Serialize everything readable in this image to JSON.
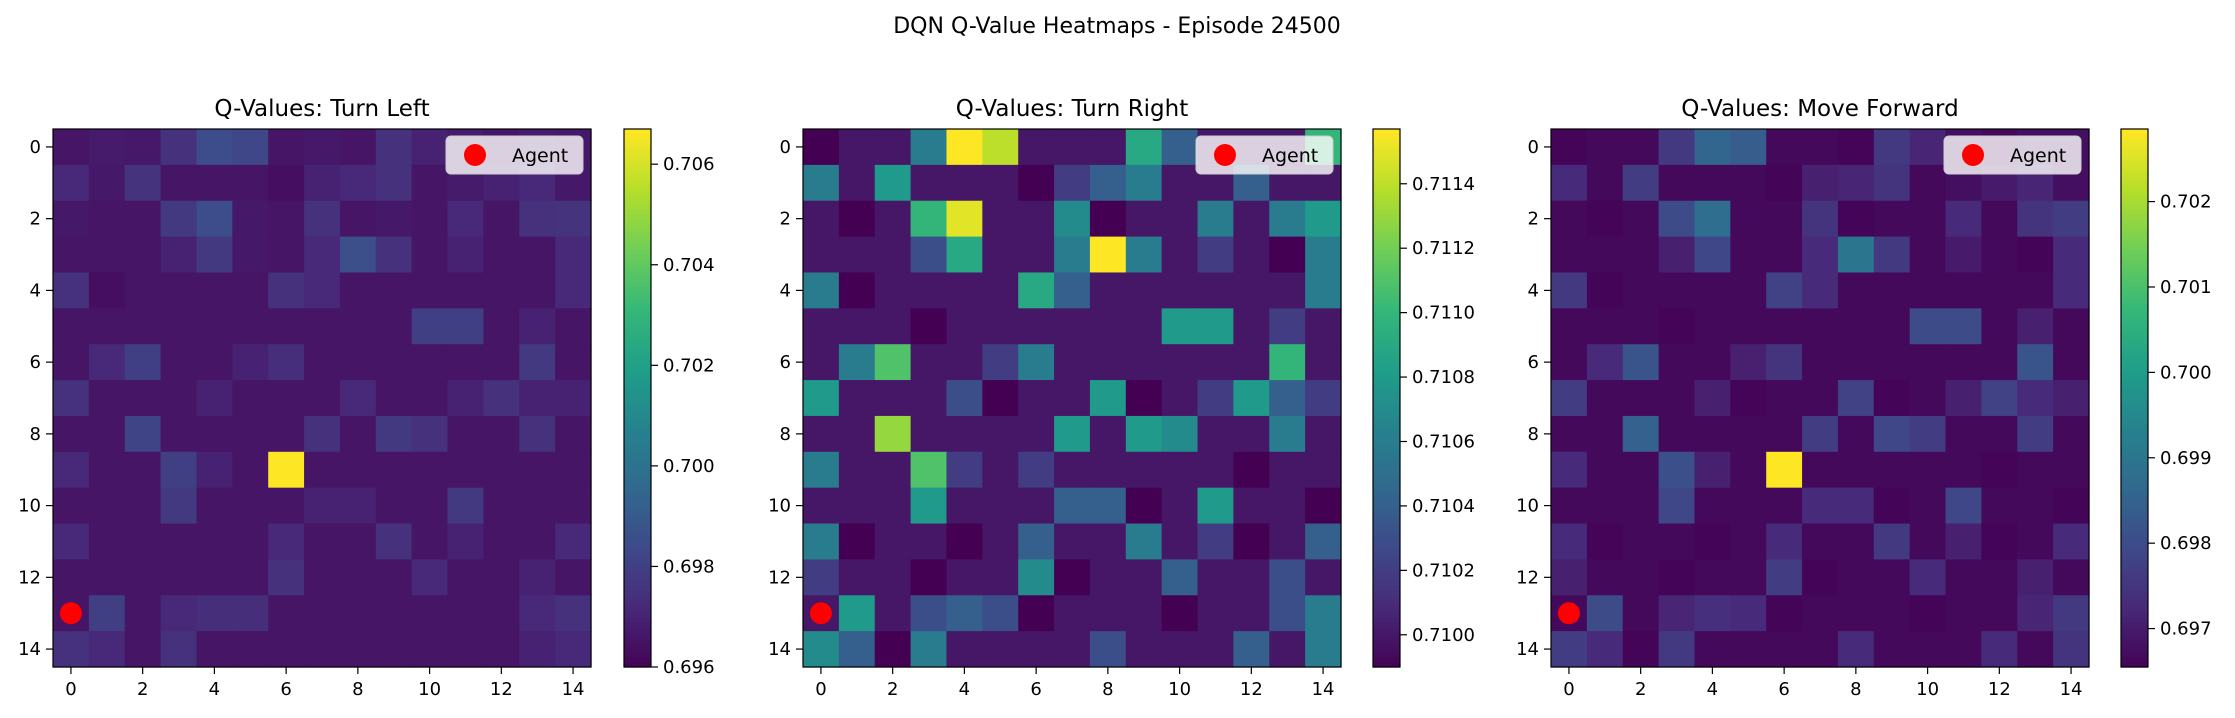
{
  "figure": {
    "title": "DQN Q-Value Heatmaps - Episode 24500"
  },
  "colormap": {
    "name": "viridis",
    "stops": [
      "#440154",
      "#482878",
      "#3e4989",
      "#31688e",
      "#26828e",
      "#1f9e89",
      "#35b779",
      "#6ece58",
      "#b5de2b",
      "#fde725"
    ]
  },
  "chart_data": [
    {
      "type": "heatmap",
      "title": "Q-Values: Turn Left",
      "grid_size": 15,
      "x_ticks": [
        0,
        2,
        4,
        6,
        8,
        10,
        12,
        14
      ],
      "y_ticks": [
        0,
        2,
        4,
        6,
        8,
        10,
        12,
        14
      ],
      "colorbar": {
        "vmin": 0.696,
        "vmax": 0.7067,
        "ticks": [
          0.696,
          0.698,
          0.7,
          0.702,
          0.704,
          0.706
        ],
        "tick_labels": [
          "0.696",
          "0.698",
          "0.700",
          "0.702",
          "0.704",
          "0.706"
        ]
      },
      "legend": {
        "label": "Agent",
        "placement": "top-right",
        "marker_color": "#ff0000"
      },
      "agent": {
        "x": 0,
        "y": 13
      },
      "values": [
        [
          0.6966,
          0.6968,
          0.6967,
          0.6975,
          0.6985,
          0.6983,
          0.6966,
          0.6967,
          0.6966,
          0.6975,
          0.697,
          0.6968,
          0.6966,
          0.6968,
          0.6967
        ],
        [
          0.6972,
          0.6967,
          0.6976,
          0.6966,
          0.6966,
          0.6966,
          0.6964,
          0.697,
          0.6972,
          0.6975,
          0.6966,
          0.6968,
          0.697,
          0.6972,
          0.6967
        ],
        [
          0.6967,
          0.6966,
          0.6966,
          0.6978,
          0.6985,
          0.6967,
          0.6966,
          0.6975,
          0.6966,
          0.6967,
          0.6966,
          0.6972,
          0.6966,
          0.6975,
          0.6976
        ],
        [
          0.6966,
          0.6966,
          0.6966,
          0.697,
          0.6978,
          0.6967,
          0.6966,
          0.6972,
          0.6986,
          0.6975,
          0.6966,
          0.697,
          0.6966,
          0.6966,
          0.6972
        ],
        [
          0.6975,
          0.6964,
          0.6966,
          0.6966,
          0.6966,
          0.6966,
          0.6975,
          0.6972,
          0.6966,
          0.6966,
          0.6966,
          0.6966,
          0.6966,
          0.6966,
          0.6972
        ],
        [
          0.6966,
          0.6966,
          0.6966,
          0.6966,
          0.6966,
          0.6966,
          0.6966,
          0.6966,
          0.6966,
          0.6966,
          0.698,
          0.698,
          0.6966,
          0.697,
          0.6966
        ],
        [
          0.6966,
          0.6972,
          0.698,
          0.6966,
          0.6966,
          0.697,
          0.6974,
          0.6966,
          0.6966,
          0.6966,
          0.6966,
          0.6966,
          0.6966,
          0.6978,
          0.6966
        ],
        [
          0.6975,
          0.6966,
          0.6966,
          0.6966,
          0.697,
          0.6966,
          0.6966,
          0.6966,
          0.6972,
          0.6966,
          0.6966,
          0.697,
          0.6975,
          0.697,
          0.697
        ],
        [
          0.6966,
          0.6966,
          0.6982,
          0.6966,
          0.6966,
          0.6966,
          0.6966,
          0.6975,
          0.6966,
          0.6978,
          0.6975,
          0.6966,
          0.6966,
          0.6975,
          0.6966
        ],
        [
          0.6972,
          0.6966,
          0.6966,
          0.698,
          0.697,
          0.6966,
          0.7067,
          0.6966,
          0.6966,
          0.6966,
          0.6966,
          0.6966,
          0.6966,
          0.6966,
          0.6966
        ],
        [
          0.6966,
          0.6966,
          0.6966,
          0.6978,
          0.6966,
          0.6966,
          0.6966,
          0.697,
          0.697,
          0.6966,
          0.6966,
          0.6978,
          0.6966,
          0.6966,
          0.6966
        ],
        [
          0.6972,
          0.6966,
          0.6966,
          0.6966,
          0.6966,
          0.6966,
          0.6972,
          0.6966,
          0.6966,
          0.6975,
          0.6966,
          0.697,
          0.6966,
          0.6966,
          0.6972
        ],
        [
          0.6966,
          0.6966,
          0.6966,
          0.6966,
          0.6966,
          0.6966,
          0.6975,
          0.6966,
          0.6966,
          0.6966,
          0.6972,
          0.6966,
          0.6966,
          0.697,
          0.6966
        ],
        [
          0.6966,
          0.698,
          0.6966,
          0.6972,
          0.6974,
          0.6974,
          0.6966,
          0.6966,
          0.6966,
          0.6966,
          0.6966,
          0.6966,
          0.6966,
          0.6972,
          0.6975
        ],
        [
          0.6975,
          0.6972,
          0.6966,
          0.6975,
          0.6966,
          0.6966,
          0.6966,
          0.6966,
          0.6966,
          0.6966,
          0.6966,
          0.6966,
          0.6966,
          0.697,
          0.6972
        ]
      ]
    },
    {
      "type": "heatmap",
      "title": "Q-Values: Turn Right",
      "grid_size": 15,
      "x_ticks": [
        0,
        2,
        4,
        6,
        8,
        10,
        12,
        14
      ],
      "y_ticks": [
        0,
        2,
        4,
        6,
        8,
        10,
        12,
        14
      ],
      "colorbar": {
        "vmin": 0.7099,
        "vmax": 0.71157,
        "ticks": [
          0.71,
          0.7102,
          0.7104,
          0.7106,
          0.7108,
          0.711,
          0.7112,
          0.7114
        ],
        "tick_labels": [
          "0.7100",
          "0.7102",
          "0.7104",
          "0.7106",
          "0.7108",
          "0.7110",
          "0.7112",
          "0.7114"
        ]
      },
      "legend": {
        "label": "Agent",
        "placement": "top-right",
        "marker_color": "#ff0000"
      },
      "agent": {
        "x": 0,
        "y": 13
      },
      "values": [
        [
          0.7099,
          0.71,
          0.71,
          0.7106,
          0.71157,
          0.7114,
          0.71,
          0.71,
          0.71,
          0.7109,
          0.7104,
          0.71,
          0.71,
          0.71,
          0.711
        ],
        [
          0.7106,
          0.71,
          0.7108,
          0.71,
          0.71,
          0.71,
          0.7099,
          0.7102,
          0.7104,
          0.7106,
          0.71,
          0.71,
          0.7104,
          0.71,
          0.71
        ],
        [
          0.71,
          0.7099,
          0.71,
          0.711,
          0.7115,
          0.71,
          0.71,
          0.7107,
          0.7099,
          0.71,
          0.71,
          0.7106,
          0.71,
          0.7106,
          0.7108
        ],
        [
          0.71,
          0.71,
          0.71,
          0.7103,
          0.7109,
          0.71,
          0.71,
          0.7106,
          0.7116,
          0.7106,
          0.71,
          0.7102,
          0.71,
          0.7099,
          0.7106
        ],
        [
          0.7106,
          0.7099,
          0.71,
          0.71,
          0.71,
          0.71,
          0.7109,
          0.7104,
          0.71,
          0.71,
          0.71,
          0.71,
          0.71,
          0.71,
          0.7106
        ],
        [
          0.71,
          0.71,
          0.71,
          0.7099,
          0.71,
          0.71,
          0.71,
          0.71,
          0.71,
          0.71,
          0.7108,
          0.7108,
          0.71,
          0.7102,
          0.71
        ],
        [
          0.71,
          0.7106,
          0.7111,
          0.71,
          0.71,
          0.7102,
          0.7106,
          0.71,
          0.71,
          0.71,
          0.71,
          0.71,
          0.71,
          0.711,
          0.71
        ],
        [
          0.7108,
          0.71,
          0.71,
          0.71,
          0.7103,
          0.7099,
          0.71,
          0.71,
          0.7108,
          0.7099,
          0.71,
          0.7102,
          0.7108,
          0.7104,
          0.7102
        ],
        [
          0.71,
          0.71,
          0.7113,
          0.71,
          0.71,
          0.71,
          0.71,
          0.7108,
          0.71,
          0.7108,
          0.7107,
          0.71,
          0.71,
          0.7106,
          0.71
        ],
        [
          0.7106,
          0.71,
          0.71,
          0.7111,
          0.7102,
          0.71,
          0.7102,
          0.71,
          0.71,
          0.71,
          0.71,
          0.71,
          0.7099,
          0.71,
          0.71
        ],
        [
          0.71,
          0.71,
          0.71,
          0.7108,
          0.71,
          0.71,
          0.71,
          0.7104,
          0.7104,
          0.7099,
          0.71,
          0.7108,
          0.71,
          0.71,
          0.7099
        ],
        [
          0.7106,
          0.7099,
          0.71,
          0.71,
          0.7099,
          0.71,
          0.7104,
          0.71,
          0.71,
          0.7106,
          0.71,
          0.7102,
          0.7099,
          0.71,
          0.7104
        ],
        [
          0.7102,
          0.71,
          0.71,
          0.7099,
          0.71,
          0.71,
          0.7107,
          0.7099,
          0.71,
          0.71,
          0.7104,
          0.71,
          0.71,
          0.7103,
          0.71
        ],
        [
          0.71,
          0.7108,
          0.71,
          0.7103,
          0.7104,
          0.7103,
          0.7099,
          0.71,
          0.71,
          0.71,
          0.7099,
          0.71,
          0.71,
          0.7103,
          0.7106
        ],
        [
          0.7107,
          0.7104,
          0.7099,
          0.7106,
          0.71,
          0.71,
          0.71,
          0.71,
          0.7103,
          0.71,
          0.71,
          0.71,
          0.7104,
          0.71,
          0.7106
        ]
      ]
    },
    {
      "type": "heatmap",
      "title": "Q-Values: Move Forward",
      "grid_size": 15,
      "x_ticks": [
        0,
        2,
        4,
        6,
        8,
        10,
        12,
        14
      ],
      "y_ticks": [
        0,
        2,
        4,
        6,
        8,
        10,
        12,
        14
      ],
      "colorbar": {
        "vmin": 0.69655,
        "vmax": 0.70285,
        "ticks": [
          0.697,
          0.698,
          0.699,
          0.7,
          0.701,
          0.702
        ],
        "tick_labels": [
          "0.697",
          "0.698",
          "0.699",
          "0.700",
          "0.701",
          "0.702"
        ]
      },
      "legend": {
        "label": "Agent",
        "placement": "top-right",
        "marker_color": "#ff0000"
      },
      "agent": {
        "x": 0,
        "y": 13
      },
      "values": [
        [
          0.6966,
          0.6967,
          0.6967,
          0.6976,
          0.6986,
          0.6984,
          0.6967,
          0.6967,
          0.6966,
          0.6976,
          0.6972,
          0.6968,
          0.6967,
          0.6968,
          0.6968
        ],
        [
          0.6973,
          0.6967,
          0.6977,
          0.6967,
          0.6967,
          0.6967,
          0.6966,
          0.6971,
          0.6972,
          0.6975,
          0.6967,
          0.6968,
          0.697,
          0.6972,
          0.6968
        ],
        [
          0.6967,
          0.6966,
          0.6967,
          0.698,
          0.6988,
          0.6967,
          0.6967,
          0.6975,
          0.6966,
          0.6967,
          0.6967,
          0.6973,
          0.6967,
          0.6975,
          0.6977
        ],
        [
          0.6967,
          0.6967,
          0.6967,
          0.6971,
          0.6979,
          0.6967,
          0.6967,
          0.6973,
          0.699,
          0.6976,
          0.6967,
          0.697,
          0.6967,
          0.6966,
          0.6973
        ],
        [
          0.6976,
          0.6966,
          0.6967,
          0.6967,
          0.6967,
          0.6967,
          0.6978,
          0.6973,
          0.6967,
          0.6967,
          0.6967,
          0.6967,
          0.6967,
          0.6967,
          0.6973
        ],
        [
          0.6967,
          0.6967,
          0.6967,
          0.6966,
          0.6967,
          0.6967,
          0.6967,
          0.6967,
          0.6967,
          0.6967,
          0.698,
          0.698,
          0.6967,
          0.6971,
          0.6967
        ],
        [
          0.6967,
          0.6973,
          0.6982,
          0.6967,
          0.6967,
          0.6971,
          0.6975,
          0.6967,
          0.6967,
          0.6967,
          0.6967,
          0.6967,
          0.6967,
          0.6982,
          0.6967
        ],
        [
          0.6977,
          0.6967,
          0.6967,
          0.6967,
          0.6971,
          0.6966,
          0.6967,
          0.6967,
          0.6978,
          0.6966,
          0.6967,
          0.6971,
          0.6978,
          0.6973,
          0.6971
        ],
        [
          0.6967,
          0.6967,
          0.6985,
          0.6967,
          0.6967,
          0.6967,
          0.6967,
          0.6977,
          0.6967,
          0.6979,
          0.6977,
          0.6967,
          0.6967,
          0.6977,
          0.6967
        ],
        [
          0.6973,
          0.6967,
          0.6967,
          0.6981,
          0.6971,
          0.6967,
          0.70285,
          0.6967,
          0.6967,
          0.6967,
          0.6967,
          0.6967,
          0.6966,
          0.6967,
          0.6967
        ],
        [
          0.6967,
          0.6967,
          0.6967,
          0.6979,
          0.6967,
          0.6967,
          0.6967,
          0.6973,
          0.6973,
          0.6966,
          0.6967,
          0.6979,
          0.6967,
          0.6967,
          0.6966
        ],
        [
          0.6973,
          0.6966,
          0.6967,
          0.6967,
          0.6966,
          0.6967,
          0.6973,
          0.6967,
          0.6967,
          0.6976,
          0.6967,
          0.6971,
          0.6966,
          0.6967,
          0.6973
        ],
        [
          0.6971,
          0.6967,
          0.6967,
          0.6966,
          0.6967,
          0.6967,
          0.6977,
          0.6966,
          0.6967,
          0.6967,
          0.6973,
          0.6967,
          0.6967,
          0.6971,
          0.6967
        ],
        [
          0.6967,
          0.698,
          0.6967,
          0.6972,
          0.6974,
          0.6973,
          0.6966,
          0.6967,
          0.6967,
          0.6967,
          0.6966,
          0.6967,
          0.6967,
          0.6972,
          0.6976
        ],
        [
          0.6977,
          0.6973,
          0.6966,
          0.6976,
          0.6967,
          0.6967,
          0.6967,
          0.6967,
          0.6973,
          0.6967,
          0.6967,
          0.6967,
          0.6973,
          0.6967,
          0.6975
        ]
      ]
    }
  ]
}
